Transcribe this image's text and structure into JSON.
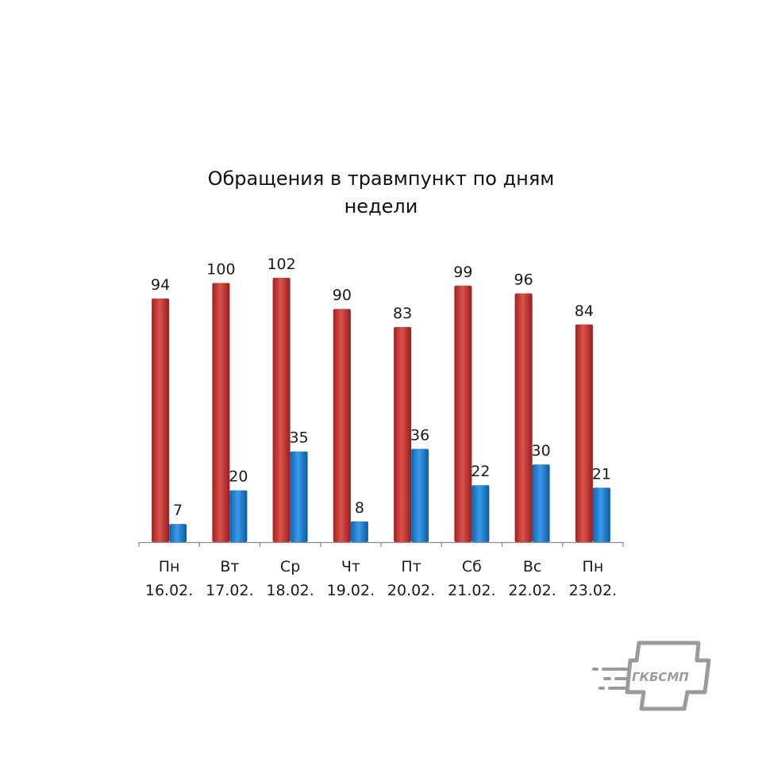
{
  "chart_data": {
    "type": "bar",
    "title_lines": [
      "Обращения в травмпункт по дням",
      "недели"
    ],
    "categories": [
      {
        "day": "Пн",
        "date": "16.02."
      },
      {
        "day": "Вт",
        "date": "17.02."
      },
      {
        "day": "Ср",
        "date": "18.02."
      },
      {
        "day": "Чт",
        "date": "19.02."
      },
      {
        "day": "Пт",
        "date": "20.02."
      },
      {
        "day": "Сб",
        "date": "21.02."
      },
      {
        "day": "Вс",
        "date": "22.02."
      },
      {
        "day": "Пн",
        "date": "23.02."
      }
    ],
    "series": [
      {
        "color": "#c0392b",
        "values": [
          94,
          100,
          102,
          90,
          83,
          99,
          96,
          84
        ]
      },
      {
        "color": "#1a7fd4",
        "values": [
          7,
          20,
          35,
          8,
          36,
          22,
          30,
          21
        ]
      }
    ],
    "ylim": [
      0,
      102
    ],
    "data_labels": true,
    "grid": false,
    "legend": "none"
  },
  "logo": {
    "text": "ГКБСМП",
    "color": "#9b9b9b"
  }
}
